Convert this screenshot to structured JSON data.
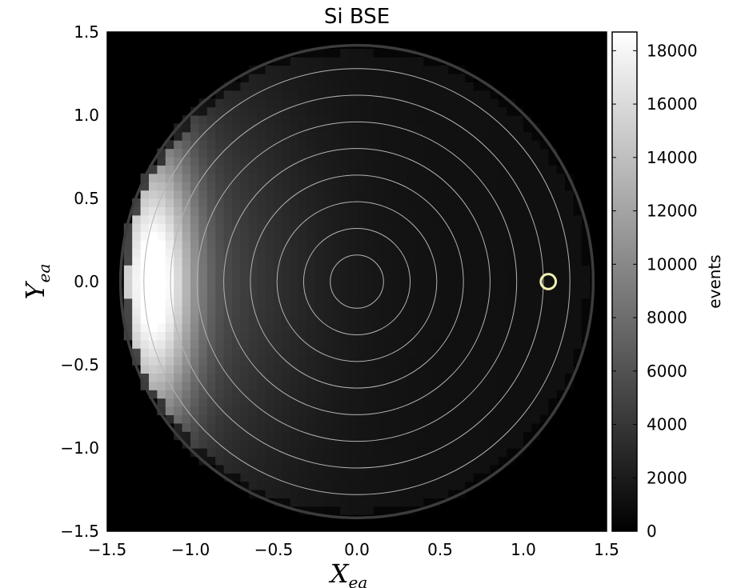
{
  "chart_data": {
    "type": "heatmap",
    "title": "Si BSE",
    "xlabel_main": "X",
    "xlabel_sub": "ea",
    "ylabel_main": "Y",
    "ylabel_sub": "ea",
    "xlim": [
      -1.5,
      1.5
    ],
    "ylim": [
      -1.5,
      1.5
    ],
    "xticks": [
      -1.5,
      -1.0,
      -0.5,
      0.0,
      0.5,
      1.0,
      1.5
    ],
    "xtick_labels": [
      "−1.5",
      "−1.0",
      "−0.5",
      "0.0",
      "0.5",
      "1.0",
      "1.5"
    ],
    "yticks": [
      -1.5,
      -1.0,
      -0.5,
      0.0,
      0.5,
      1.0,
      1.5
    ],
    "ytick_labels": [
      "−1.5",
      "−1.0",
      "−0.5",
      "0.0",
      "0.5",
      "1.0",
      "1.5"
    ],
    "colormap": "gray",
    "colorbar": {
      "label": "events",
      "range": [
        0,
        18700
      ],
      "ticks": [
        0,
        2000,
        4000,
        6000,
        8000,
        10000,
        12000,
        14000,
        16000,
        18000
      ],
      "tick_labels": [
        "0",
        "2000",
        "4000",
        "6000",
        "8000",
        "10000",
        "12000",
        "14000",
        "16000",
        "18000"
      ]
    },
    "field": {
      "radius": 1.42,
      "peak_x": -1.22,
      "peak_y": 0.0,
      "peak_value": 18700,
      "base_value": 1200,
      "grid_cells": 60
    },
    "contour_radii": [
      0.16,
      0.32,
      0.48,
      0.64,
      0.8,
      0.96,
      1.12,
      1.28
    ],
    "boundary_circle_radius": 1.42,
    "marker": {
      "x": 1.15,
      "y": 0.0,
      "radius": 0.045,
      "color": "#f2f0b4"
    }
  }
}
